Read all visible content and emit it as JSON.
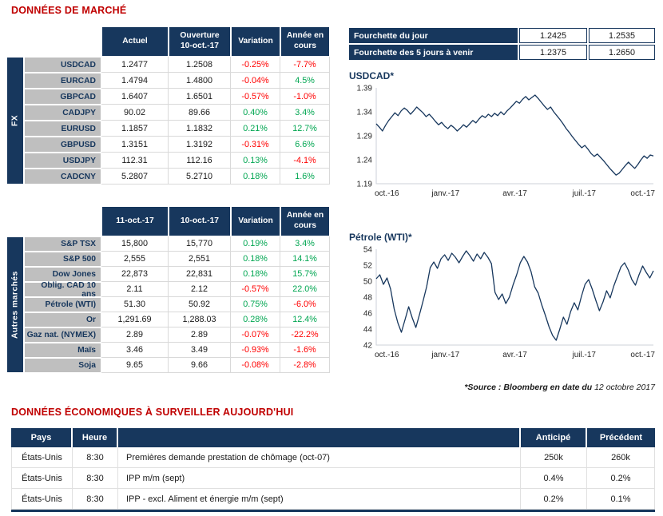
{
  "page": {
    "title_market": "DONNÉES DE MARCHÉ",
    "title_econ": "DONNÉES ÉCONOMIQUES À SURVEILLER AUJOURD'HUI",
    "source_prefix": "*Source : Bloomberg en date du",
    "source_date": "12 octobre 2017"
  },
  "colors": {
    "navy": "#17375D",
    "title_red": "#C00000",
    "positive": "#00A651",
    "negative": "#FF0000",
    "row_label_bg": "#BFBFBF"
  },
  "fx_table": {
    "group_label": "FX",
    "headers": [
      "Actuel",
      "Ouverture\n10-oct.-17",
      "Variation",
      "Année en\ncours"
    ],
    "rows": [
      {
        "label": "USDCAD",
        "values": [
          "1.2477",
          "1.2508"
        ],
        "variation": "-0.25%",
        "ytd": "-7.7%"
      },
      {
        "label": "EURCAD",
        "values": [
          "1.4794",
          "1.4800"
        ],
        "variation": "-0.04%",
        "ytd": "4.5%"
      },
      {
        "label": "GBPCAD",
        "values": [
          "1.6407",
          "1.6501"
        ],
        "variation": "-0.57%",
        "ytd": "-1.0%"
      },
      {
        "label": "CADJPY",
        "values": [
          "90.02",
          "89.66"
        ],
        "variation": "0.40%",
        "ytd": "3.4%"
      },
      {
        "label": "EURUSD",
        "values": [
          "1.1857",
          "1.1832"
        ],
        "variation": "0.21%",
        "ytd": "12.7%"
      },
      {
        "label": "GBPUSD",
        "values": [
          "1.3151",
          "1.3192"
        ],
        "variation": "-0.31%",
        "ytd": "6.6%"
      },
      {
        "label": "USDJPY",
        "values": [
          "112.31",
          "112.16"
        ],
        "variation": "0.13%",
        "ytd": "-4.1%"
      },
      {
        "label": "CADCNY",
        "values": [
          "5.2807",
          "5.2710"
        ],
        "variation": "0.18%",
        "ytd": "1.6%"
      }
    ]
  },
  "markets_table": {
    "group_label": "Autres marchés",
    "headers": [
      "11-oct.-17",
      "10-oct.-17",
      "Variation",
      "Année en\ncours"
    ],
    "rows": [
      {
        "label": "S&P TSX",
        "values": [
          "15,800",
          "15,770"
        ],
        "variation": "0.19%",
        "ytd": "3.4%"
      },
      {
        "label": "S&P 500",
        "values": [
          "2,555",
          "2,551"
        ],
        "variation": "0.18%",
        "ytd": "14.1%"
      },
      {
        "label": "Dow Jones",
        "values": [
          "22,873",
          "22,831"
        ],
        "variation": "0.18%",
        "ytd": "15.7%"
      },
      {
        "label": "Oblig. CAD 10 ans",
        "values": [
          "2.11",
          "2.12"
        ],
        "variation": "-0.57%",
        "ytd": "22.0%"
      },
      {
        "label": "Pétrole (WTI)",
        "values": [
          "51.30",
          "50.92"
        ],
        "variation": "0.75%",
        "ytd": "-6.0%"
      },
      {
        "label": "Or",
        "values": [
          "1,291.69",
          "1,288.03"
        ],
        "variation": "0.28%",
        "ytd": "12.4%"
      },
      {
        "label": "Gaz nat. (NYMEX)",
        "values": [
          "2.89",
          "2.89"
        ],
        "variation": "-0.07%",
        "ytd": "-22.2%"
      },
      {
        "label": "Maïs",
        "values": [
          "3.46",
          "3.49"
        ],
        "variation": "-0.93%",
        "ytd": "-1.6%"
      },
      {
        "label": "Soja",
        "values": [
          "9.65",
          "9.66"
        ],
        "variation": "-0.08%",
        "ytd": "-2.8%"
      }
    ]
  },
  "ranges": [
    {
      "label": "Fourchette du jour",
      "low": "1.2425",
      "high": "1.2535"
    },
    {
      "label": "Fourchette des 5 jours à venir",
      "low": "1.2375",
      "high": "1.2650"
    }
  ],
  "chart_data": [
    {
      "type": "line",
      "title": "USDCAD*",
      "x_labels": [
        "oct.-16",
        "janv.-17",
        "avr.-17",
        "juil.-17",
        "oct.-17"
      ],
      "y_ticks": [
        "1.39",
        "1.34",
        "1.29",
        "1.24",
        "1.19"
      ],
      "ylim": [
        1.19,
        1.39
      ],
      "legend": "none",
      "grid": false,
      "line_color": "#17375D",
      "series": [
        {
          "name": "USDCAD",
          "values": [
            1.315,
            1.308,
            1.3,
            1.312,
            1.322,
            1.33,
            1.338,
            1.332,
            1.342,
            1.348,
            1.343,
            1.335,
            1.342,
            1.35,
            1.344,
            1.338,
            1.33,
            1.335,
            1.328,
            1.32,
            1.313,
            1.318,
            1.31,
            1.305,
            1.312,
            1.307,
            1.3,
            1.306,
            1.313,
            1.308,
            1.315,
            1.322,
            1.317,
            1.325,
            1.332,
            1.328,
            1.335,
            1.33,
            1.337,
            1.332,
            1.34,
            1.334,
            1.342,
            1.348,
            1.355,
            1.362,
            1.358,
            1.366,
            1.372,
            1.365,
            1.37,
            1.375,
            1.368,
            1.36,
            1.352,
            1.345,
            1.35,
            1.34,
            1.332,
            1.324,
            1.315,
            1.305,
            1.297,
            1.288,
            1.28,
            1.272,
            1.265,
            1.27,
            1.262,
            1.253,
            1.247,
            1.252,
            1.245,
            1.238,
            1.23,
            1.222,
            1.215,
            1.208,
            1.212,
            1.22,
            1.228,
            1.235,
            1.228,
            1.222,
            1.23,
            1.24,
            1.248,
            1.243,
            1.25,
            1.248
          ]
        }
      ]
    },
    {
      "type": "line",
      "title": "Pétrole (WTI)*",
      "x_labels": [
        "oct.-16",
        "janv.-17",
        "avr.-17",
        "juil.-17",
        "oct.-17"
      ],
      "y_ticks": [
        "54",
        "52",
        "50",
        "48",
        "46",
        "44",
        "42"
      ],
      "ylim": [
        42,
        54
      ],
      "legend": "none",
      "grid": false,
      "line_color": "#17375D",
      "series": [
        {
          "name": "WTI",
          "values": [
            50.3,
            50.8,
            49.6,
            50.4,
            49.0,
            46.5,
            44.8,
            43.6,
            45.2,
            46.8,
            45.4,
            44.2,
            45.8,
            47.5,
            49.3,
            51.7,
            52.4,
            51.6,
            52.8,
            53.3,
            52.6,
            53.5,
            53.0,
            52.3,
            53.1,
            53.8,
            53.2,
            52.5,
            53.4,
            52.8,
            53.6,
            53.0,
            52.2,
            48.6,
            47.7,
            48.4,
            47.2,
            48.0,
            49.5,
            50.8,
            52.3,
            53.1,
            52.4,
            51.2,
            49.3,
            48.5,
            47.0,
            45.7,
            44.3,
            43.2,
            42.6,
            44.0,
            45.5,
            44.6,
            46.2,
            47.3,
            46.4,
            48.1,
            49.6,
            50.2,
            49.0,
            47.6,
            46.3,
            47.4,
            48.8,
            47.9,
            49.4,
            50.6,
            51.8,
            52.3,
            51.4,
            50.2,
            49.5,
            50.8,
            51.9,
            51.1,
            50.4,
            51.3
          ]
        }
      ]
    }
  ],
  "econ_table": {
    "headers": [
      "Pays",
      "Heure",
      "",
      "Anticipé",
      "Précédent"
    ],
    "rows": [
      {
        "country": "États-Unis",
        "time": "8:30",
        "event": "Premières demande prestation de chômage (oct-07)",
        "anticipated": "250k",
        "previous": "260k"
      },
      {
        "country": "États-Unis",
        "time": "8:30",
        "event": "IPP m/m (sept)",
        "anticipated": "0.4%",
        "previous": "0.2%"
      },
      {
        "country": "États-Unis",
        "time": "8:30",
        "event": "IPP - excl. Aliment et énergie m/m (sept)",
        "anticipated": "0.2%",
        "previous": "0.1%"
      }
    ]
  }
}
